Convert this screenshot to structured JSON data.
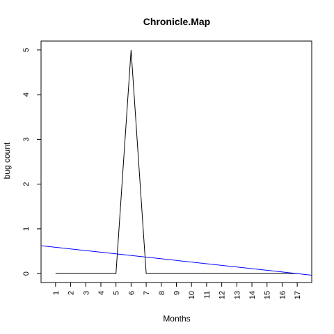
{
  "chart_data": {
    "type": "line",
    "title": "Chronicle.Map",
    "xlabel": "Months",
    "ylabel": "bug count",
    "xlim": [
      0.04,
      17.96
    ],
    "ylim": [
      -0.2,
      5.2
    ],
    "x_ticks": [
      "1",
      "2",
      "3",
      "4",
      "5",
      "6",
      "7",
      "8",
      "9",
      "10",
      "11",
      "12",
      "13",
      "14",
      "15",
      "16",
      "17"
    ],
    "y_ticks": [
      0,
      1,
      2,
      3,
      4,
      5
    ],
    "grid": false,
    "legend": "none",
    "series": [
      {
        "color": "#000000",
        "x": [
          1,
          2,
          3,
          4,
          5,
          6,
          7,
          8,
          9,
          10,
          11,
          12,
          13,
          14,
          15,
          16,
          17
        ],
        "values": [
          0,
          0,
          0,
          0,
          0,
          5,
          0,
          0,
          0,
          0,
          0,
          0,
          0,
          0,
          0,
          0,
          0
        ]
      },
      {
        "color": "#0000ff",
        "line_kind": "trend",
        "intercept": 0.625,
        "slope": -0.0368
      }
    ]
  }
}
